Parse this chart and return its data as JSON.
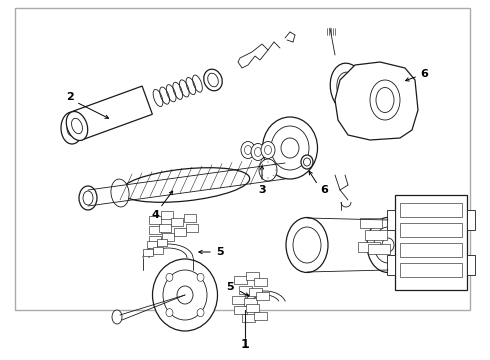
{
  "background_color": "#ffffff",
  "border_color": "#999999",
  "line_color": "#1a1a1a",
  "fig_width": 4.9,
  "fig_height": 3.6,
  "dpi": 100
}
